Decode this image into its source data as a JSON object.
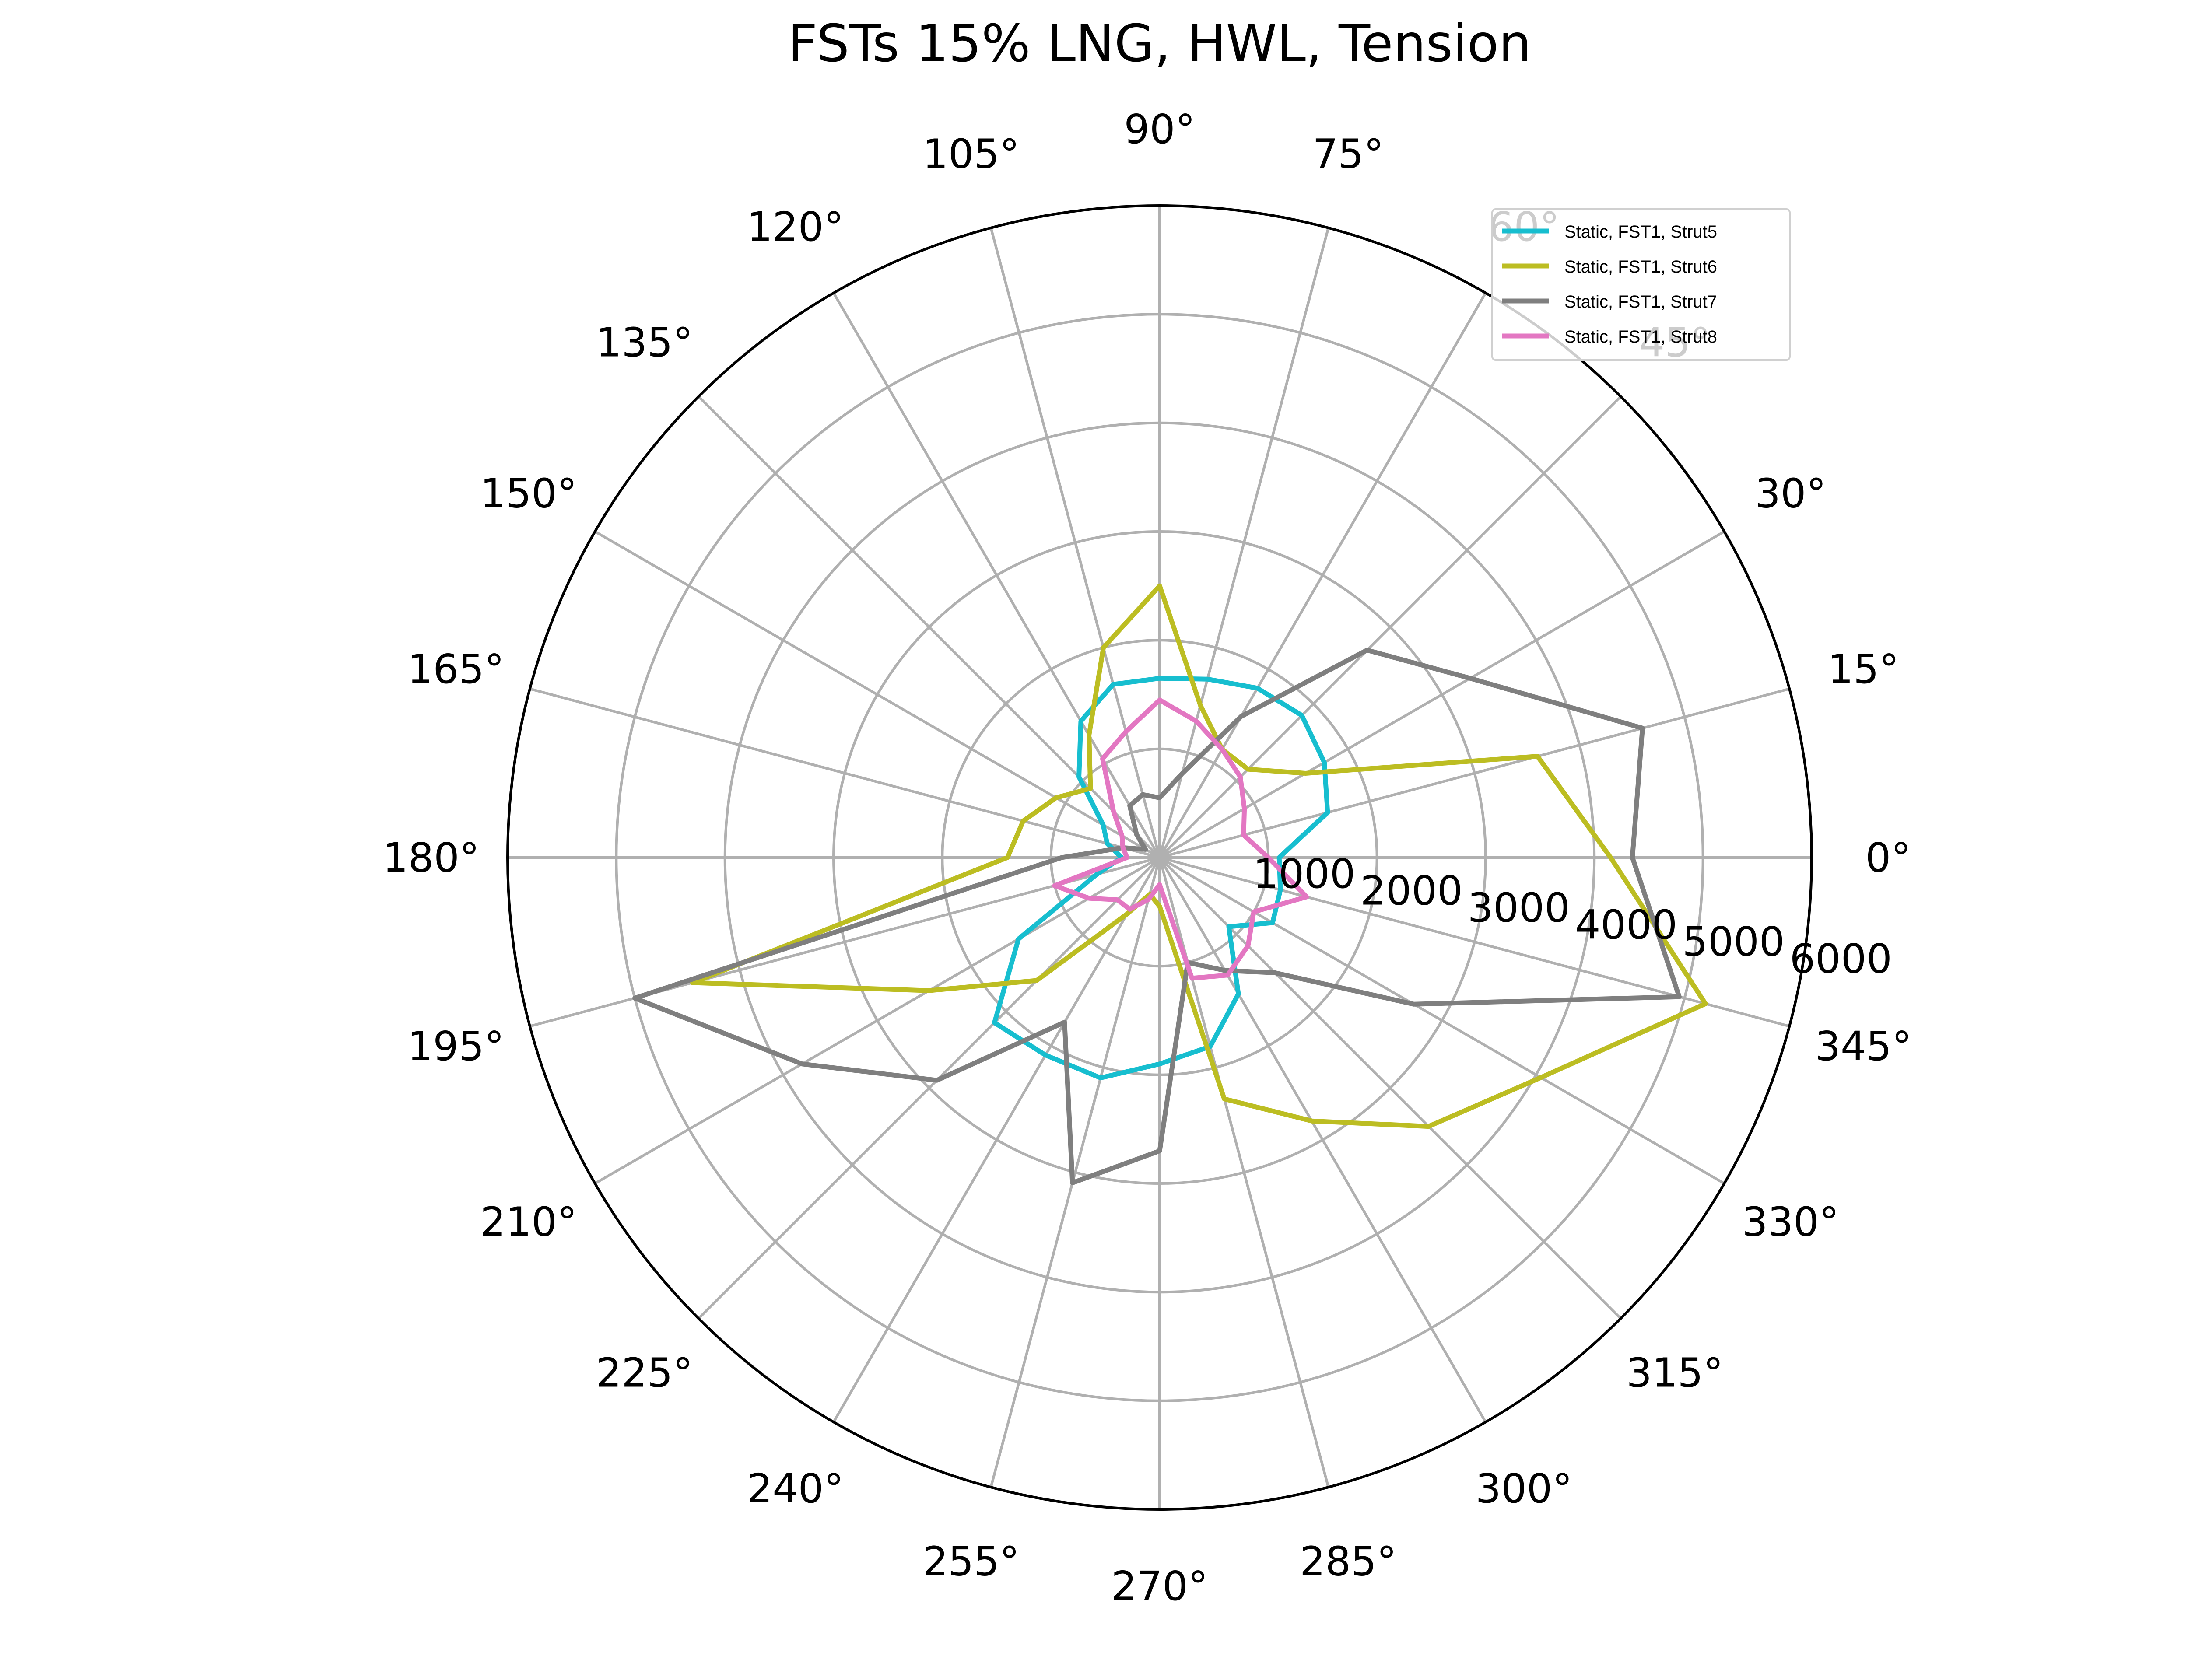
{
  "chart_data": {
    "type": "line",
    "projection": "polar",
    "title": "FSTs 15% LNG, HWL, Tension",
    "theta_unit": "degrees",
    "theta_direction": "counterclockwise",
    "theta_zero": "east",
    "theta_ticks": [
      "0°",
      "15°",
      "30°",
      "45°",
      "60°",
      "75°",
      "90°",
      "105°",
      "120°",
      "135°",
      "150°",
      "165°",
      "180°",
      "195°",
      "210°",
      "225°",
      "240°",
      "255°",
      "270°",
      "285°",
      "300°",
      "315°",
      "330°",
      "345°"
    ],
    "r_ticks": [
      1000,
      2000,
      3000,
      4000,
      5000,
      6000
    ],
    "r_tick_labels": [
      "1000",
      "2000",
      "3000",
      "4000",
      "5000",
      "6000"
    ],
    "rlim": [
      0,
      6000
    ],
    "grid": true,
    "legend_position": "upper-right",
    "theta": [
      0,
      15,
      30,
      45,
      60,
      75,
      90,
      105,
      120,
      135,
      150,
      165,
      180,
      195,
      210,
      225,
      240,
      255,
      270,
      285,
      300,
      315,
      330,
      345
    ],
    "series": [
      {
        "name": "Static, FST1, Strut5",
        "color": "#17becf",
        "values": [
          1100,
          1600,
          1750,
          1850,
          1800,
          1700,
          1650,
          1650,
          1450,
          1050,
          600,
          500,
          350,
          600,
          1500,
          2150,
          2100,
          2100,
          1900,
          1800,
          1450,
          900,
          1200,
          1150
        ]
      },
      {
        "name": "Static, FST1, Strut6",
        "color": "#bcbd22",
        "values": [
          4150,
          3600,
          1550,
          1150,
          1150,
          1450,
          2500,
          2000,
          1300,
          900,
          1100,
          1300,
          1400,
          4450,
          2450,
          1600,
          600,
          350,
          450,
          2300,
          2800,
          3500,
          4050,
          5200
        ]
      },
      {
        "name": "Static, FST1, Strut7",
        "color": "#7f7f7f",
        "values": [
          4350,
          4600,
          3300,
          2700,
          1500,
          800,
          550,
          600,
          550,
          300,
          150,
          350,
          900,
          5000,
          3800,
          2900,
          1750,
          3100,
          2700,
          1000,
          1200,
          1500,
          2700,
          4950
        ]
      },
      {
        "name": "Static, FST1, Strut8",
        "color": "#e377c2",
        "values": [
          1000,
          800,
          900,
          1050,
          1150,
          1300,
          1450,
          1200,
          1050,
          600,
          400,
          350,
          300,
          1000,
          750,
          550,
          550,
          400,
          250,
          1150,
          1250,
          1150,
          1000,
          1400
        ]
      }
    ]
  }
}
